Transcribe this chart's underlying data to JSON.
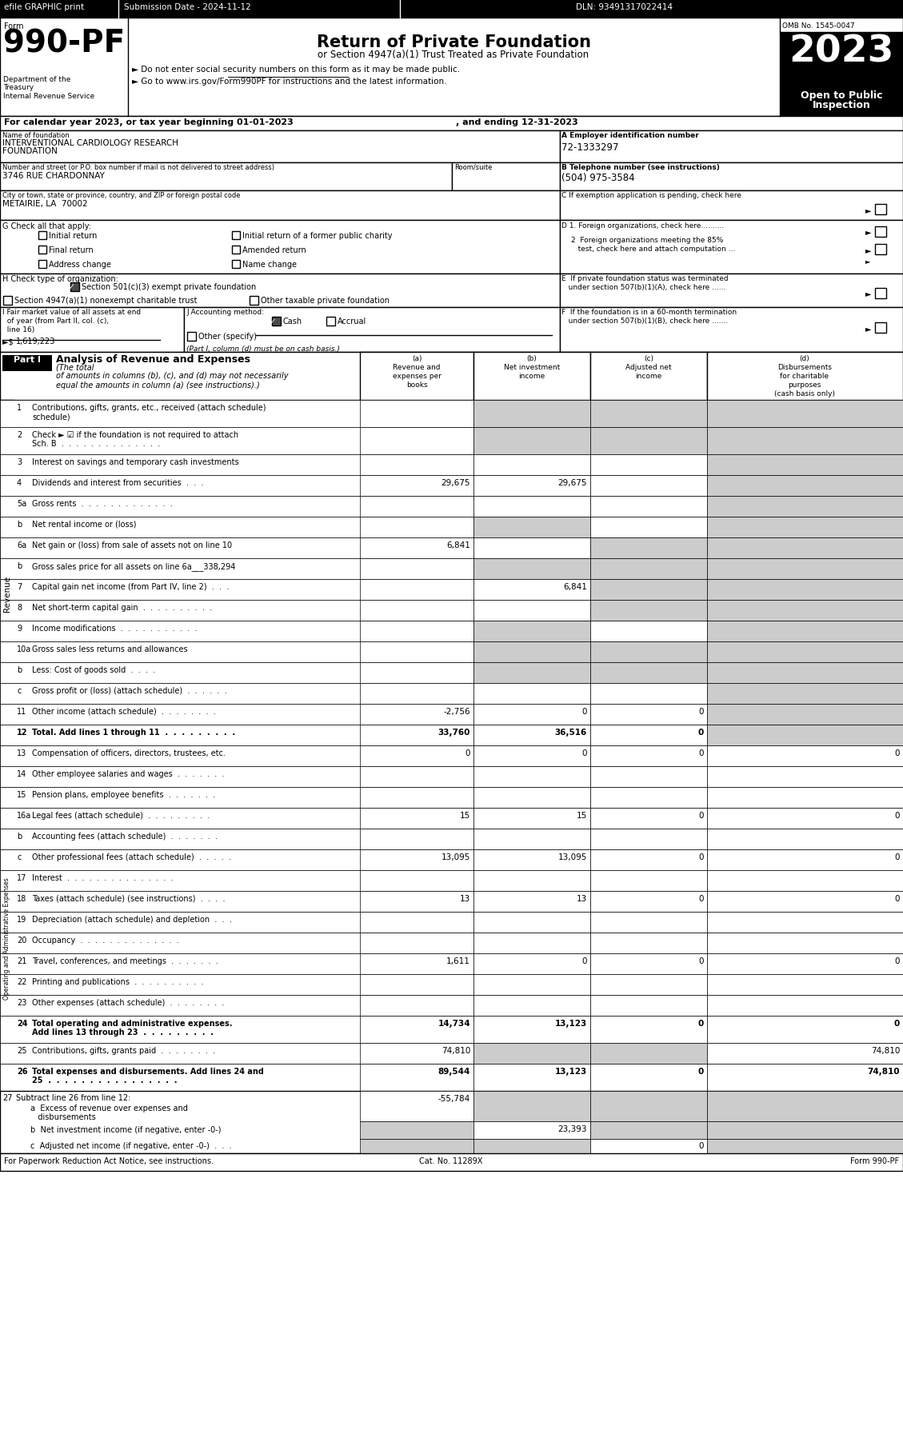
{
  "efile_text": "efile GRAPHIC print",
  "submission_date": "Submission Date - 2024-11-12",
  "dln": "DLN: 93491317022414",
  "form_number": "990-PF",
  "form_label": "Form",
  "title": "Return of Private Foundation",
  "subtitle": "or Section 4947(a)(1) Trust Treated as Private Foundation",
  "bullet1": "► Do not enter social security numbers on this form as it may be made public.",
  "bullet2": "► Go to www.irs.gov/Form990PF for instructions and the latest information.",
  "year": "2023",
  "open_text": "Open to Public\nInspection",
  "dept_text": "Department of the\nTreasury\nInternal Revenue Service",
  "omb": "OMB No. 1545-0047",
  "cal_year_line": "For calendar year 2023, or tax year beginning 01-01-2023                , and ending 12-31-2023",
  "name_label": "Name of foundation",
  "name_value1": "INTERVENTIONAL CARDIOLOGY RESEARCH",
  "name_value2": "FOUNDATION",
  "ein_label": "A Employer identification number",
  "ein_value": "72-1333297",
  "address_label": "Number and street (or P.O. box number if mail is not delivered to street address)",
  "address_room_label": "Room/suite",
  "address_value": "3746 RUE CHARDONNAY",
  "phone_label": "B Telephone number (see instructions)",
  "phone_value": "(504) 975-3584",
  "city_label": "City or town, state or province, country, and ZIP or foreign postal code",
  "city_value": "METAIRIE, LA  70002",
  "g_label": "G Check all that apply:",
  "h_checked": "Section 501(c)(3) exempt private foundation",
  "h_unchecked1": "Section 4947(a)(1) nonexempt charitable trust",
  "h_unchecked2": "Other taxable private foundation",
  "i_value": "1,619,223",
  "revenue_label": "Revenue",
  "opex_label": "Operating and Administrative Expenses",
  "rows": [
    {
      "num": "1",
      "label": "Contributions, gifts, grants, etc., received (attach schedule)",
      "a": "",
      "b": "",
      "c": "",
      "d": "",
      "gray_b": true,
      "gray_c": true,
      "gray_d": true,
      "bold": false,
      "two_line": true,
      "label2": "schedule)"
    },
    {
      "num": "2",
      "label": "Check ► ☑ if the foundation is not required to attach",
      "a": "",
      "b": "",
      "c": "",
      "d": "",
      "gray_b": true,
      "gray_c": true,
      "gray_d": true,
      "bold": false,
      "two_line": true,
      "label2": "Sch. B  .  .  .  .  .  .  .  .  .  .  .  .  .  ."
    },
    {
      "num": "3",
      "label": "Interest on savings and temporary cash investments",
      "a": "",
      "b": "",
      "c": "",
      "d": "",
      "gray_b": false,
      "gray_c": false,
      "gray_d": true,
      "bold": false,
      "two_line": false,
      "label2": ""
    },
    {
      "num": "4",
      "label": "Dividends and interest from securities  .  .  .",
      "a": "29,675",
      "b": "29,675",
      "c": "",
      "d": "",
      "gray_b": false,
      "gray_c": false,
      "gray_d": true,
      "bold": false,
      "two_line": false,
      "label2": ""
    },
    {
      "num": "5a",
      "label": "Gross rents  .  .  .  .  .  .  .  .  .  .  .  .  .",
      "a": "",
      "b": "",
      "c": "",
      "d": "",
      "gray_b": false,
      "gray_c": false,
      "gray_d": true,
      "bold": false,
      "two_line": false,
      "label2": ""
    },
    {
      "num": "b",
      "label": "Net rental income or (loss)",
      "a": "",
      "b": "",
      "c": "",
      "d": "",
      "gray_b": true,
      "gray_c": false,
      "gray_d": true,
      "bold": false,
      "two_line": false,
      "label2": ""
    },
    {
      "num": "6a",
      "label": "Net gain or (loss) from sale of assets not on line 10",
      "a": "6,841",
      "b": "",
      "c": "",
      "d": "",
      "gray_b": false,
      "gray_c": true,
      "gray_d": true,
      "bold": false,
      "two_line": false,
      "label2": ""
    },
    {
      "num": "b",
      "label": "Gross sales price for all assets on line 6a___338,294",
      "a": "",
      "b": "",
      "c": "",
      "d": "",
      "gray_b": true,
      "gray_c": true,
      "gray_d": true,
      "bold": false,
      "two_line": false,
      "label2": ""
    },
    {
      "num": "7",
      "label": "Capital gain net income (from Part IV, line 2)  .  .  .",
      "a": "",
      "b": "6,841",
      "c": "",
      "d": "",
      "gray_b": false,
      "gray_c": true,
      "gray_d": true,
      "bold": false,
      "two_line": false,
      "label2": ""
    },
    {
      "num": "8",
      "label": "Net short-term capital gain  .  .  .  .  .  .  .  .  .  .",
      "a": "",
      "b": "",
      "c": "",
      "d": "",
      "gray_b": false,
      "gray_c": true,
      "gray_d": true,
      "bold": false,
      "two_line": false,
      "label2": ""
    },
    {
      "num": "9",
      "label": "Income modifications  .  .  .  .  .  .  .  .  .  .  .",
      "a": "",
      "b": "",
      "c": "",
      "d": "",
      "gray_b": true,
      "gray_c": false,
      "gray_d": true,
      "bold": false,
      "two_line": false,
      "label2": ""
    },
    {
      "num": "10a",
      "label": "Gross sales less returns and allowances",
      "a": "",
      "b": "",
      "c": "",
      "d": "",
      "gray_b": true,
      "gray_c": true,
      "gray_d": true,
      "bold": false,
      "two_line": false,
      "label2": ""
    },
    {
      "num": "b",
      "label": "Less: Cost of goods sold  .  .  .  .",
      "a": "",
      "b": "",
      "c": "",
      "d": "",
      "gray_b": true,
      "gray_c": true,
      "gray_d": true,
      "bold": false,
      "two_line": false,
      "label2": ""
    },
    {
      "num": "c",
      "label": "Gross profit or (loss) (attach schedule)  .  .  .  .  .  .",
      "a": "",
      "b": "",
      "c": "",
      "d": "",
      "gray_b": false,
      "gray_c": false,
      "gray_d": true,
      "bold": false,
      "two_line": false,
      "label2": ""
    },
    {
      "num": "11",
      "label": "Other income (attach schedule)  .  .  .  .  .  .  .  .",
      "a": "-2,756",
      "b": "0",
      "c": "0",
      "d": "",
      "gray_b": false,
      "gray_c": false,
      "gray_d": true,
      "bold": false,
      "two_line": false,
      "label2": ""
    },
    {
      "num": "12",
      "label": "Total. Add lines 1 through 11  .  .  .  .  .  .  .  .  .",
      "a": "33,760",
      "b": "36,516",
      "c": "0",
      "d": "",
      "gray_b": false,
      "gray_c": false,
      "gray_d": true,
      "bold": true,
      "two_line": false,
      "label2": ""
    },
    {
      "num": "13",
      "label": "Compensation of officers, directors, trustees, etc.",
      "a": "0",
      "b": "0",
      "c": "0",
      "d": "0",
      "gray_b": false,
      "gray_c": false,
      "gray_d": false,
      "bold": false,
      "two_line": false,
      "label2": ""
    },
    {
      "num": "14",
      "label": "Other employee salaries and wages  .  .  .  .  .  .  .",
      "a": "",
      "b": "",
      "c": "",
      "d": "",
      "gray_b": false,
      "gray_c": false,
      "gray_d": false,
      "bold": false,
      "two_line": false,
      "label2": ""
    },
    {
      "num": "15",
      "label": "Pension plans, employee benefits  .  .  .  .  .  .  .",
      "a": "",
      "b": "",
      "c": "",
      "d": "",
      "gray_b": false,
      "gray_c": false,
      "gray_d": false,
      "bold": false,
      "two_line": false,
      "label2": ""
    },
    {
      "num": "16a",
      "label": "Legal fees (attach schedule)  .  .  .  .  .  .  .  .  .",
      "a": "15",
      "b": "15",
      "c": "0",
      "d": "0",
      "gray_b": false,
      "gray_c": false,
      "gray_d": false,
      "bold": false,
      "two_line": false,
      "label2": ""
    },
    {
      "num": "b",
      "label": "Accounting fees (attach schedule)  .  .  .  .  .  .  .",
      "a": "",
      "b": "",
      "c": "",
      "d": "",
      "gray_b": false,
      "gray_c": false,
      "gray_d": false,
      "bold": false,
      "two_line": false,
      "label2": ""
    },
    {
      "num": "c",
      "label": "Other professional fees (attach schedule)  .  .  .  .  .",
      "a": "13,095",
      "b": "13,095",
      "c": "0",
      "d": "0",
      "gray_b": false,
      "gray_c": false,
      "gray_d": false,
      "bold": false,
      "two_line": false,
      "label2": ""
    },
    {
      "num": "17",
      "label": "Interest  .  .  .  .  .  .  .  .  .  .  .  .  .  .  .",
      "a": "",
      "b": "",
      "c": "",
      "d": "",
      "gray_b": false,
      "gray_c": false,
      "gray_d": false,
      "bold": false,
      "two_line": false,
      "label2": ""
    },
    {
      "num": "18",
      "label": "Taxes (attach schedule) (see instructions)  .  .  .  .",
      "a": "13",
      "b": "13",
      "c": "0",
      "d": "0",
      "gray_b": false,
      "gray_c": false,
      "gray_d": false,
      "bold": false,
      "two_line": false,
      "label2": ""
    },
    {
      "num": "19",
      "label": "Depreciation (attach schedule) and depletion  .  .  .",
      "a": "",
      "b": "",
      "c": "",
      "d": "",
      "gray_b": false,
      "gray_c": false,
      "gray_d": false,
      "bold": false,
      "two_line": false,
      "label2": ""
    },
    {
      "num": "20",
      "label": "Occupancy  .  .  .  .  .  .  .  .  .  .  .  .  .  .",
      "a": "",
      "b": "",
      "c": "",
      "d": "",
      "gray_b": false,
      "gray_c": false,
      "gray_d": false,
      "bold": false,
      "two_line": false,
      "label2": ""
    },
    {
      "num": "21",
      "label": "Travel, conferences, and meetings  .  .  .  .  .  .  .",
      "a": "1,611",
      "b": "0",
      "c": "0",
      "d": "0",
      "gray_b": false,
      "gray_c": false,
      "gray_d": false,
      "bold": false,
      "two_line": false,
      "label2": ""
    },
    {
      "num": "22",
      "label": "Printing and publications  .  .  .  .  .  .  .  .  .  .",
      "a": "",
      "b": "",
      "c": "",
      "d": "",
      "gray_b": false,
      "gray_c": false,
      "gray_d": false,
      "bold": false,
      "two_line": false,
      "label2": ""
    },
    {
      "num": "23",
      "label": "Other expenses (attach schedule)  .  .  .  .  .  .  .  .",
      "a": "",
      "b": "",
      "c": "",
      "d": "",
      "gray_b": false,
      "gray_c": false,
      "gray_d": false,
      "bold": false,
      "two_line": false,
      "label2": ""
    },
    {
      "num": "24",
      "label": "Total operating and administrative expenses.",
      "a": "14,734",
      "b": "13,123",
      "c": "0",
      "d": "0",
      "gray_b": false,
      "gray_c": false,
      "gray_d": false,
      "bold": true,
      "two_line": true,
      "label2": "Add lines 13 through 23  .  .  .  .  .  .  .  .  ."
    },
    {
      "num": "25",
      "label": "Contributions, gifts, grants paid  .  .  .  .  .  .  .  .",
      "a": "74,810",
      "b": "",
      "c": "",
      "d": "74,810",
      "gray_b": true,
      "gray_c": true,
      "gray_d": false,
      "bold": false,
      "two_line": false,
      "label2": ""
    },
    {
      "num": "26",
      "label": "Total expenses and disbursements. Add lines 24 and",
      "a": "89,544",
      "b": "13,123",
      "c": "0",
      "d": "74,810",
      "gray_b": false,
      "gray_c": false,
      "gray_d": false,
      "bold": true,
      "two_line": true,
      "label2": "25  .  .  .  .  .  .  .  .  .  .  .  .  .  .  .  ."
    }
  ],
  "line27a_val": "-55,784",
  "line27b_val": "23,393",
  "line27c_val": "0",
  "footer_left": "For Paperwork Reduction Act Notice, see instructions.",
  "footer_cat": "Cat. No. 11289X",
  "footer_right": "Form 990-PF"
}
